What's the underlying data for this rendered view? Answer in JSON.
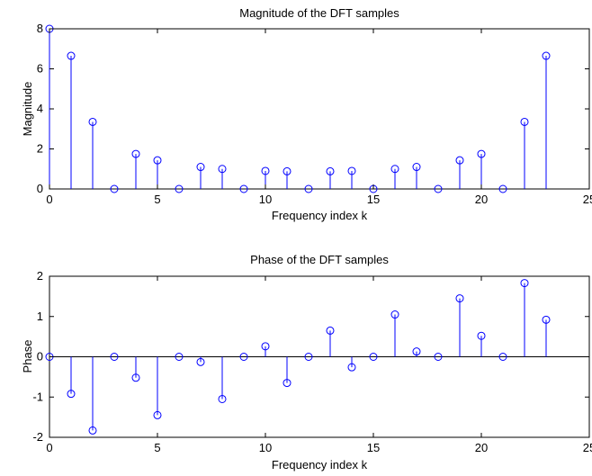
{
  "chart_data": [
    {
      "type": "stem",
      "title": "Magnitude of the DFT samples",
      "xlabel": "Frequency index k",
      "ylabel": "Magnitude",
      "xlim": [
        0,
        25
      ],
      "ylim": [
        0,
        8
      ],
      "xticks": [
        "0",
        "5",
        "10",
        "15",
        "20",
        "25"
      ],
      "yticks": [
        "0",
        "2",
        "4",
        "6",
        "8"
      ],
      "xtick_values": [
        0,
        5,
        10,
        15,
        20,
        25
      ],
      "ytick_values": [
        0,
        2,
        4,
        6,
        8
      ],
      "grid": false,
      "color": "#0000ff",
      "x": [
        0,
        1,
        2,
        3,
        4,
        5,
        6,
        7,
        8,
        9,
        10,
        11,
        12,
        13,
        14,
        15,
        16,
        17,
        18,
        19,
        20,
        21,
        22,
        23
      ],
      "values": [
        8.0,
        6.65,
        3.35,
        0.0,
        1.75,
        1.43,
        0.0,
        1.1,
        1.0,
        0.0,
        0.9,
        0.88,
        0.0,
        0.88,
        0.9,
        0.0,
        1.0,
        1.1,
        0.0,
        1.43,
        1.75,
        0.0,
        3.35,
        6.65
      ]
    },
    {
      "type": "stem",
      "title": "Phase of the DFT samples",
      "xlabel": "Frequency index k",
      "ylabel": "Phase",
      "xlim": [
        0,
        25
      ],
      "ylim": [
        -2,
        2
      ],
      "xticks": [
        "0",
        "5",
        "10",
        "15",
        "20",
        "25"
      ],
      "yticks": [
        "-2",
        "-1",
        "0",
        "1",
        "2"
      ],
      "xtick_values": [
        0,
        5,
        10,
        15,
        20,
        25
      ],
      "ytick_values": [
        -2,
        -1,
        0,
        1,
        2
      ],
      "grid": false,
      "zero_line": true,
      "color": "#0000ff",
      "x": [
        0,
        1,
        2,
        3,
        4,
        5,
        6,
        7,
        8,
        9,
        10,
        11,
        12,
        13,
        14,
        15,
        16,
        17,
        18,
        19,
        20,
        21,
        22,
        23
      ],
      "values": [
        0.0,
        -0.92,
        -1.83,
        0.0,
        -0.52,
        -1.45,
        0.0,
        -0.13,
        -1.05,
        0.0,
        0.26,
        -0.65,
        0.0,
        0.65,
        -0.26,
        0.0,
        1.05,
        0.13,
        0.0,
        1.45,
        0.52,
        0.0,
        1.83,
        0.92
      ]
    }
  ]
}
